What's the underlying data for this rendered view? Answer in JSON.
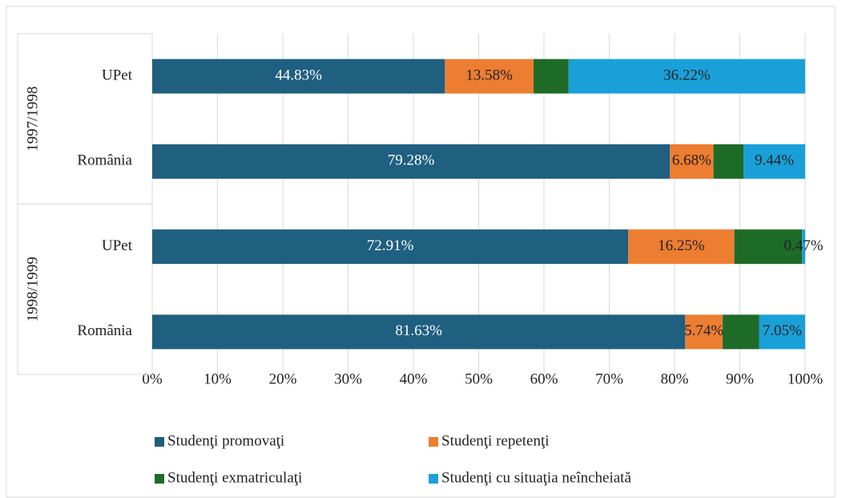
{
  "chart_data": {
    "type": "stacked-bar-horizontal",
    "groups": [
      {
        "name": "1997/1998",
        "categories": [
          "UPet",
          "România"
        ]
      },
      {
        "name": "1998/1999",
        "categories": [
          "UPet",
          "România"
        ]
      }
    ],
    "series": [
      {
        "name": "Studenţi promovaţi",
        "color": "#1f5f80",
        "label_color": "#ffffff",
        "values": [
          44.83,
          79.28,
          72.91,
          81.63
        ],
        "value_labels": [
          "44.83%",
          "79.28%",
          "72.91%",
          "81.63%"
        ]
      },
      {
        "name": "Studenţi repetenţi",
        "color": "#ed7d31",
        "label_color": "#222222",
        "values": [
          13.58,
          6.68,
          16.25,
          5.74
        ],
        "value_labels": [
          "13.58%",
          "6.68%",
          "16.25%",
          "5.74%"
        ]
      },
      {
        "name": "Studenţi exmatriculaţi",
        "color": "#1e6b28",
        "values": [
          5.37,
          4.6,
          10.37,
          5.58
        ]
      },
      {
        "name": "Studenţi cu situaţia neîncheiată",
        "color": "#1aa0d8",
        "label_color": "#222222",
        "values": [
          36.22,
          9.44,
          0.47,
          7.05
        ],
        "value_labels": [
          "36.22%",
          "9.44%",
          "0.47%",
          "7.05%"
        ]
      }
    ],
    "xlim": [
      0,
      100
    ],
    "xticks": [
      {
        "value": 0,
        "label": "0%"
      },
      {
        "value": 10,
        "label": "10%"
      },
      {
        "value": 20,
        "label": "20%"
      },
      {
        "value": 30,
        "label": "30%"
      },
      {
        "value": 40,
        "label": "40%"
      },
      {
        "value": 50,
        "label": "50%"
      },
      {
        "value": 60,
        "label": "60%"
      },
      {
        "value": 70,
        "label": "70%"
      },
      {
        "value": 80,
        "label": "80%"
      },
      {
        "value": 90,
        "label": "90%"
      },
      {
        "value": 100,
        "label": "100%"
      }
    ],
    "grid": true,
    "legend": "bottom"
  }
}
